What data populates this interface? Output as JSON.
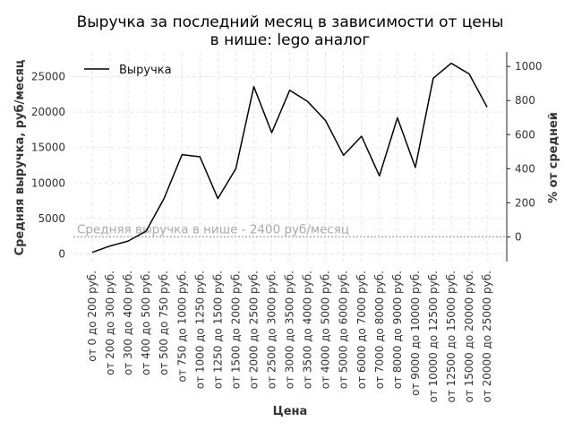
{
  "chart_data": {
    "type": "line",
    "title_lines": [
      "Выручка за последний месяц в зависимости от цены",
      "в нише: lego аналог"
    ],
    "xlabel": "Цена",
    "ylabel": "Средняя выручка, руб/месяц",
    "y2label": "% от средней",
    "categories": [
      "от 0 до 200 руб.",
      "от 200 до 300 руб.",
      "от 300 до 400 руб.",
      "от 400 до 500 руб.",
      "от 500 до 750 руб.",
      "от 750 до 1000 руб.",
      "от 1000 до 1250 руб.",
      "от 1250 до 1500 руб.",
      "от 1500 до 2000 руб.",
      "от 2000 до 2500 руб.",
      "от 2500 до 3000 руб.",
      "от 3000 до 3500 руб.",
      "от 3500 до 4000 руб.",
      "от 4000 до 5000 руб.",
      "от 5000 до 6000 руб.",
      "от 6000 до 7000 руб.",
      "от 7000 до 8000 руб.",
      "от 8000 до 9000 руб.",
      "от 9000 до 10000 руб.",
      "от 10000 до 12500 руб.",
      "от 12500 до 15000 руб.",
      "от 15000 до 20000 руб.",
      "от 20000 до 25000 руб."
    ],
    "series": [
      {
        "name": "Выручка",
        "color": "#000000",
        "values": [
          200,
          1100,
          1800,
          3200,
          7800,
          14000,
          13700,
          7800,
          12000,
          23600,
          17100,
          23100,
          21500,
          18800,
          13900,
          16600,
          11000,
          19200,
          12200,
          24800,
          26900,
          25400,
          20700
        ]
      }
    ],
    "ylim": [
      -1100,
      28500
    ],
    "yticks": [
      0,
      5000,
      10000,
      15000,
      20000,
      25000
    ],
    "y2lim": [
      -145,
      1085
    ],
    "y2ticks": [
      0,
      200,
      400,
      600,
      800,
      1000
    ],
    "average_line": {
      "value": 2400,
      "label": "Средняя выручка в нише - 2400 руб/месяц",
      "color": "#aaaaaa"
    },
    "legend_position": "top-left",
    "grid": true
  }
}
